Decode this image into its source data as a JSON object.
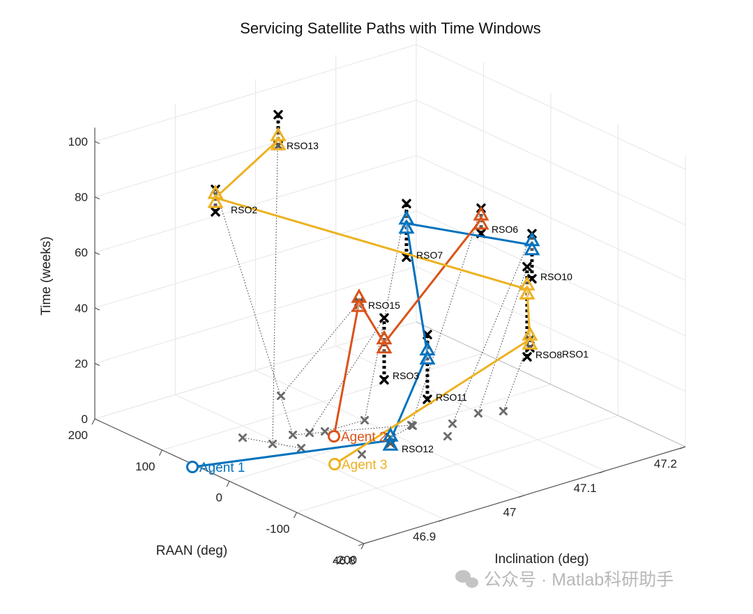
{
  "chart_data": {
    "type": "scatter",
    "title": "Servicing Satellite Paths with Time Windows",
    "axes": {
      "x": {
        "label": "Inclination (deg)",
        "ticks": [
          "46.8",
          "46.9",
          "47",
          "47.1",
          "47.2"
        ]
      },
      "y": {
        "label": "RAAN (deg)",
        "ticks": [
          "-200",
          "-100",
          "0",
          "100",
          "200"
        ]
      },
      "z": {
        "label": "Time (weeks)",
        "ticks": [
          "0",
          "20",
          "40",
          "60",
          "80",
          "100"
        ]
      }
    },
    "agents": [
      {
        "name": "Agent 1",
        "color": "#0072BD",
        "route": [
          "RSO12",
          "RSO11",
          "RSO7",
          "RSO10"
        ]
      },
      {
        "name": "Agent 2",
        "color": "#D95319",
        "route": [
          "RSO15",
          "RSO3",
          "RSO6"
        ]
      },
      {
        "name": "Agent 3",
        "color": "#EDB120",
        "route": [
          "RSO1",
          "RSO8",
          "RSO2",
          "RSO13"
        ]
      }
    ],
    "rsos": [
      {
        "name": "RSO1",
        "window_start": 19,
        "window_end": 22,
        "service_time": 22
      },
      {
        "name": "RSO2",
        "window_start": 73,
        "window_end": 81,
        "service_time": 78
      },
      {
        "name": "RSO3",
        "window_start": 14,
        "window_end": 36,
        "service_time": 27
      },
      {
        "name": "RSO6",
        "window_start": 66,
        "window_end": 75,
        "service_time": 71
      },
      {
        "name": "RSO7",
        "window_start": 57,
        "window_end": 76,
        "service_time": 69
      },
      {
        "name": "RSO8",
        "window_start": 14,
        "window_end": 46,
        "service_time": 38
      },
      {
        "name": "RSO10",
        "window_start": 48,
        "window_end": 64,
        "service_time": 60
      },
      {
        "name": "RSO11",
        "window_start": 6,
        "window_end": 29,
        "service_time": 22
      },
      {
        "name": "RSO12",
        "window_start": 2,
        "window_end": 4,
        "service_time": 3
      },
      {
        "name": "RSO13",
        "window_start": 97,
        "window_end": 108,
        "service_time": 99
      },
      {
        "name": "RSO15",
        "window_start": 41,
        "window_end": 42,
        "service_time": 42
      }
    ]
  },
  "watermark": "公众号 · Matlab科研助手"
}
